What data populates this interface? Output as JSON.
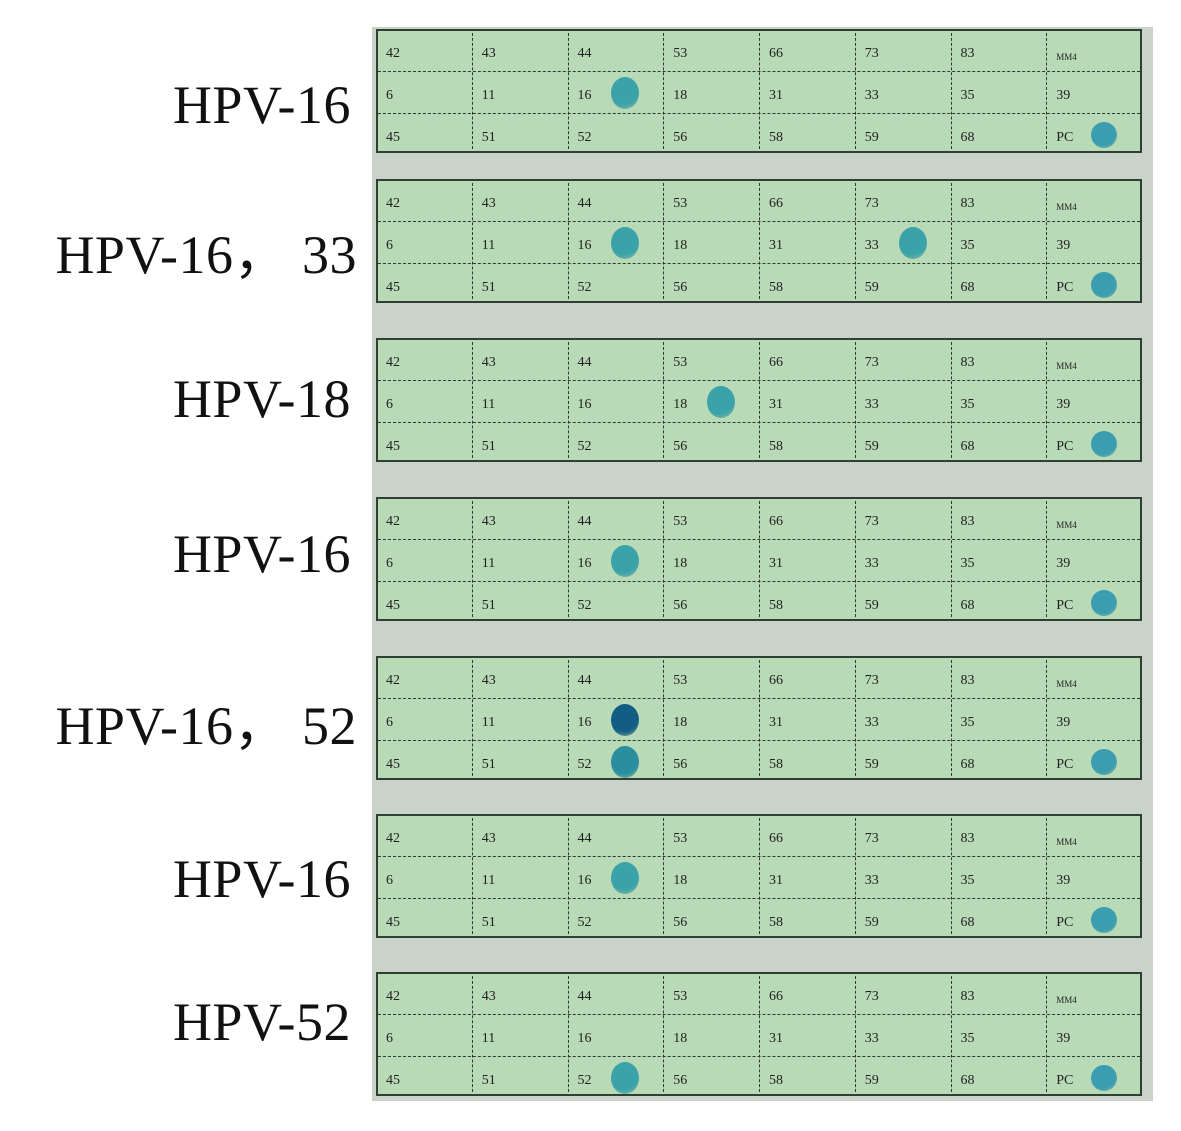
{
  "cell_labels": {
    "top": [
      "42",
      "43",
      "44",
      "53",
      "66",
      "73",
      "83",
      "MM4"
    ],
    "middle": [
      "6",
      "11",
      "16",
      "18",
      "31",
      "33",
      "35",
      "39"
    ],
    "bottom": [
      "45",
      "51",
      "52",
      "56",
      "58",
      "59",
      "68",
      "PC"
    ]
  },
  "spot_colors": {
    "light": "#3aa3a9",
    "medium": "#2a8e9e",
    "dark": "#125d84",
    "control": "#3a9db0"
  },
  "strips": [
    {
      "label": "HPV-16",
      "positive_cells": [
        "16",
        "PC"
      ]
    },
    {
      "label": "HPV-16，  33",
      "positive_cells": [
        "16",
        "33",
        "PC"
      ]
    },
    {
      "label": "HPV-18",
      "positive_cells": [
        "18",
        "PC"
      ]
    },
    {
      "label": "HPV-16",
      "positive_cells": [
        "16",
        "PC"
      ]
    },
    {
      "label": "HPV-16，  52",
      "positive_cells": [
        "16",
        "52",
        "PC"
      ]
    },
    {
      "label": "HPV-16",
      "positive_cells": [
        "16",
        "PC"
      ]
    },
    {
      "label": "HPV-52",
      "positive_cells": [
        "52",
        "PC"
      ]
    }
  ]
}
